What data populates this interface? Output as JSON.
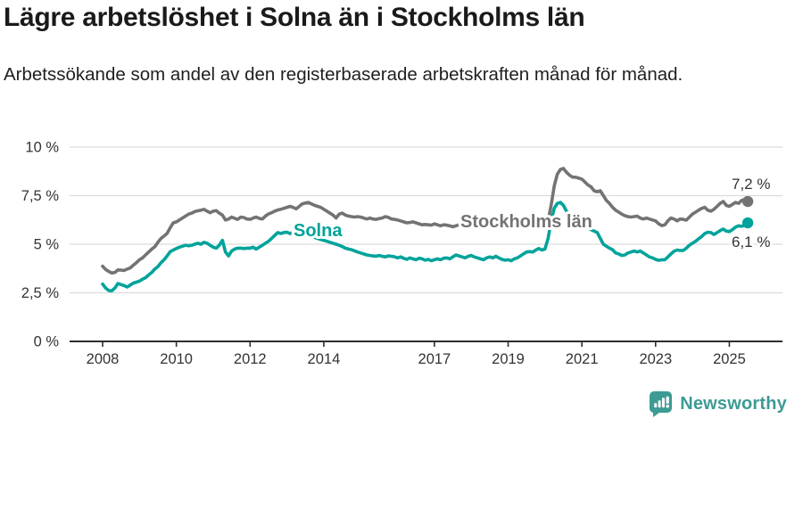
{
  "header": {
    "title": "Lägre arbetslöshet i Solna än i Stockholms län",
    "subtitle": "Arbetssökande som andel av den registerbaserade arbetskraften månad för månad."
  },
  "chart_data": {
    "type": "line",
    "unit": "%",
    "frequency": "monthly",
    "start_month": "2008-01",
    "end_month": "2025-07",
    "grid": "horizontal",
    "ylim": [
      0,
      10
    ],
    "y_ticks": [
      {
        "v": 0,
        "label": "0 %"
      },
      {
        "v": 2.5,
        "label": "2,5 %"
      },
      {
        "v": 5,
        "label": "5 %"
      },
      {
        "v": 7.5,
        "label": "7,5 %"
      },
      {
        "v": 10,
        "label": "10 %"
      }
    ],
    "x_ticks": [
      {
        "year": 2008,
        "label": "2008"
      },
      {
        "year": 2010,
        "label": "2010"
      },
      {
        "year": 2012,
        "label": "2012"
      },
      {
        "year": 2014,
        "label": "2014"
      },
      {
        "year": 2017,
        "label": "2017"
      },
      {
        "year": 2019,
        "label": "2019"
      },
      {
        "year": 2021,
        "label": "2021"
      },
      {
        "year": 2023,
        "label": "2023"
      },
      {
        "year": 2025,
        "label": "2025"
      }
    ],
    "series": [
      {
        "name": "Stockholms län",
        "color": "#737373",
        "end_label": "7,2 %",
        "values": [
          3.87,
          3.7,
          3.6,
          3.52,
          3.55,
          3.68,
          3.67,
          3.65,
          3.72,
          3.78,
          3.92,
          4.05,
          4.2,
          4.3,
          4.45,
          4.6,
          4.75,
          4.87,
          5.1,
          5.3,
          5.42,
          5.56,
          5.85,
          6.1,
          6.15,
          6.25,
          6.35,
          6.45,
          6.55,
          6.6,
          6.68,
          6.72,
          6.75,
          6.8,
          6.7,
          6.62,
          6.7,
          6.73,
          6.6,
          6.5,
          6.25,
          6.3,
          6.4,
          6.33,
          6.28,
          6.4,
          6.37,
          6.3,
          6.28,
          6.35,
          6.4,
          6.33,
          6.3,
          6.45,
          6.56,
          6.62,
          6.7,
          6.76,
          6.8,
          6.85,
          6.9,
          6.95,
          6.9,
          6.82,
          6.95,
          7.08,
          7.12,
          7.15,
          7.08,
          7.0,
          6.95,
          6.9,
          6.8,
          6.7,
          6.6,
          6.5,
          6.35,
          6.55,
          6.6,
          6.5,
          6.45,
          6.42,
          6.4,
          6.42,
          6.4,
          6.35,
          6.3,
          6.35,
          6.3,
          6.28,
          6.32,
          6.35,
          6.42,
          6.38,
          6.3,
          6.28,
          6.25,
          6.2,
          6.15,
          6.1,
          6.12,
          6.15,
          6.1,
          6.05,
          6.0,
          6.02,
          6.0,
          5.98,
          6.05,
          6.0,
          5.95,
          6.0,
          5.98,
          5.95,
          5.9,
          5.95,
          6.0,
          6.02,
          6.0,
          6.05,
          6.0,
          6.02,
          6.05,
          6.0,
          5.98,
          6.05,
          6.02,
          5.95,
          6.0,
          6.05,
          6.02,
          6.0,
          6.0,
          6.05,
          5.95,
          6.0,
          6.02,
          6.05,
          6.0,
          5.98,
          6.0,
          6.05,
          6.0,
          5.95,
          6.0,
          6.2,
          7.0,
          8.0,
          8.6,
          8.85,
          8.9,
          8.7,
          8.55,
          8.45,
          8.45,
          8.4,
          8.35,
          8.2,
          8.05,
          7.95,
          7.75,
          7.7,
          7.75,
          7.5,
          7.25,
          7.1,
          6.9,
          6.75,
          6.65,
          6.55,
          6.47,
          6.42,
          6.4,
          6.42,
          6.45,
          6.35,
          6.3,
          6.35,
          6.3,
          6.25,
          6.2,
          6.05,
          5.96,
          6.0,
          6.2,
          6.35,
          6.3,
          6.2,
          6.3,
          6.28,
          6.24,
          6.4,
          6.55,
          6.65,
          6.75,
          6.85,
          6.9,
          6.75,
          6.7,
          6.8,
          6.95,
          7.1,
          7.2,
          7.0,
          6.95,
          7.05,
          7.15,
          7.1,
          7.25,
          7.3,
          7.2
        ]
      },
      {
        "name": "Solna",
        "color": "#00a39b",
        "end_label": "6,1 %",
        "values": [
          2.95,
          2.75,
          2.62,
          2.6,
          2.75,
          2.98,
          2.92,
          2.87,
          2.8,
          2.9,
          3.0,
          3.05,
          3.1,
          3.2,
          3.28,
          3.42,
          3.55,
          3.72,
          3.85,
          4.05,
          4.2,
          4.4,
          4.62,
          4.7,
          4.78,
          4.85,
          4.9,
          4.95,
          4.92,
          4.95,
          5.0,
          5.05,
          5.0,
          5.1,
          5.05,
          4.95,
          4.85,
          4.8,
          4.95,
          5.2,
          4.6,
          4.4,
          4.65,
          4.75,
          4.8,
          4.8,
          4.78,
          4.8,
          4.8,
          4.85,
          4.75,
          4.85,
          4.95,
          5.05,
          5.15,
          5.3,
          5.45,
          5.6,
          5.55,
          5.6,
          5.62,
          5.55,
          5.6,
          5.55,
          5.5,
          5.55,
          5.5,
          5.45,
          5.4,
          5.35,
          5.3,
          5.25,
          5.2,
          5.15,
          5.1,
          5.05,
          5.0,
          4.95,
          4.88,
          4.8,
          4.75,
          4.72,
          4.66,
          4.6,
          4.55,
          4.5,
          4.45,
          4.42,
          4.4,
          4.38,
          4.42,
          4.38,
          4.35,
          4.4,
          4.38,
          4.36,
          4.3,
          4.35,
          4.28,
          4.22,
          4.3,
          4.25,
          4.2,
          4.28,
          4.25,
          4.18,
          4.22,
          4.15,
          4.2,
          4.25,
          4.2,
          4.28,
          4.3,
          4.25,
          4.35,
          4.45,
          4.4,
          4.35,
          4.3,
          4.38,
          4.42,
          4.35,
          4.3,
          4.25,
          4.2,
          4.3,
          4.35,
          4.3,
          4.38,
          4.3,
          4.22,
          4.18,
          4.2,
          4.15,
          4.25,
          4.3,
          4.4,
          4.5,
          4.6,
          4.62,
          4.6,
          4.7,
          4.78,
          4.7,
          4.75,
          5.3,
          6.2,
          6.85,
          7.1,
          7.15,
          7.0,
          6.7,
          6.5,
          6.4,
          6.3,
          6.2,
          6.1,
          5.95,
          5.85,
          5.75,
          5.68,
          5.6,
          5.3,
          5.0,
          4.9,
          4.8,
          4.72,
          4.55,
          4.5,
          4.42,
          4.45,
          4.55,
          4.6,
          4.65,
          4.6,
          4.65,
          4.55,
          4.45,
          4.35,
          4.3,
          4.22,
          4.17,
          4.2,
          4.2,
          4.35,
          4.5,
          4.64,
          4.7,
          4.68,
          4.68,
          4.8,
          4.95,
          5.05,
          5.15,
          5.28,
          5.4,
          5.55,
          5.62,
          5.6,
          5.5,
          5.6,
          5.7,
          5.78,
          5.68,
          5.65,
          5.75,
          5.88,
          5.95,
          5.92,
          5.98,
          6.1
        ]
      }
    ]
  },
  "footer": {
    "brand": "Newsworthy",
    "brand_color": "#3d9b94",
    "icon": "newsworthy-bar-chart-bubble-icon"
  },
  "colors": {
    "grid": "#dcdcdc",
    "axis": "#2e2e2e",
    "tick_text": "#333333",
    "end_label_text": "#333333"
  }
}
